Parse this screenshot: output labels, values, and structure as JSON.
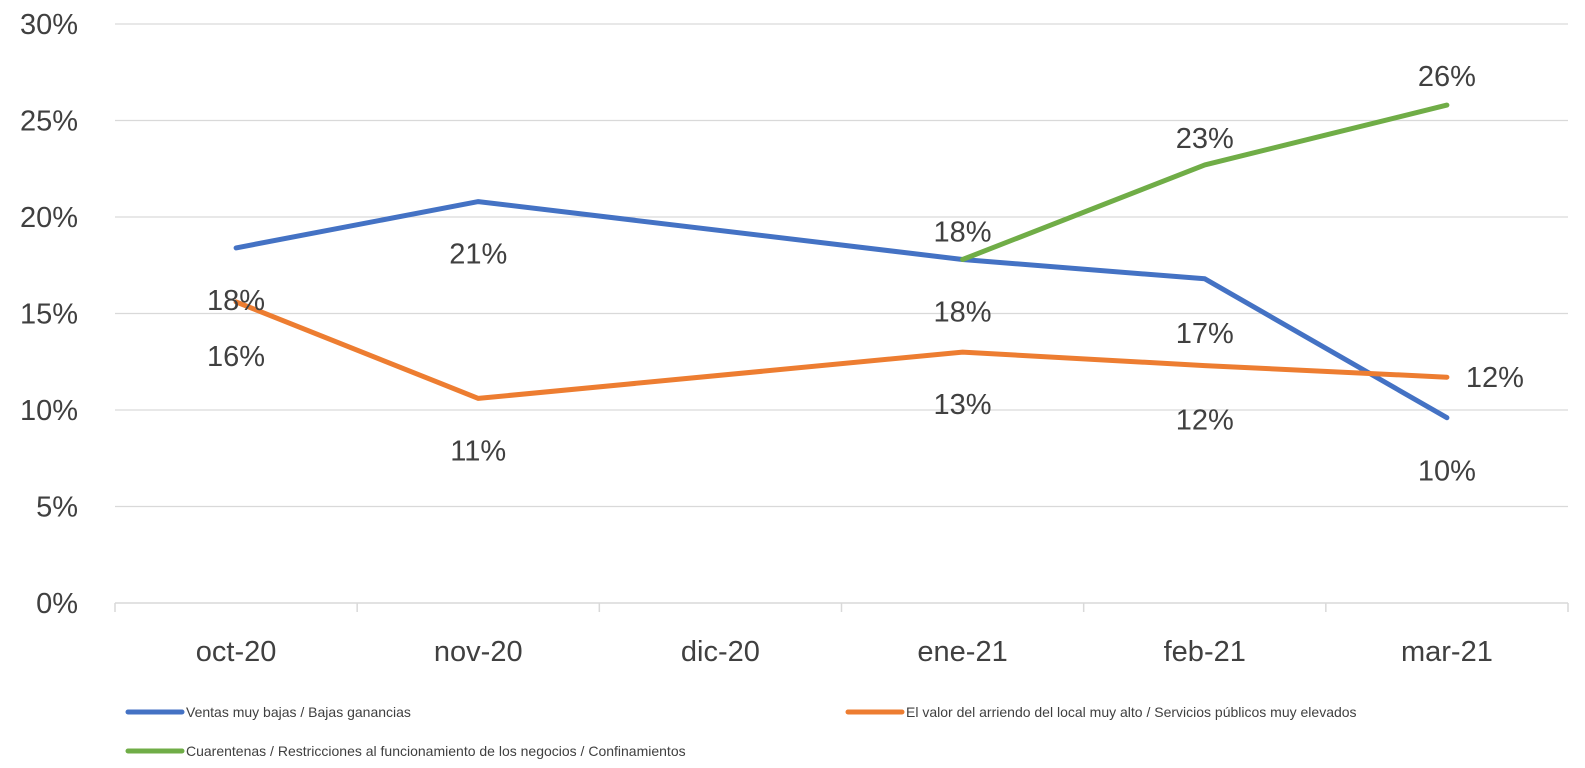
{
  "chart_data": {
    "type": "line",
    "categories": [
      "oct-20",
      "nov-20",
      "dic-20",
      "ene-21",
      "feb-21",
      "mar-21"
    ],
    "ylim": [
      0,
      30
    ],
    "yticks": [
      "0%",
      "5%",
      "10%",
      "15%",
      "20%",
      "25%",
      "30%"
    ],
    "y_format": "percent",
    "grid": true,
    "legend_position": "bottom",
    "series": [
      {
        "name": "Ventas muy bajas / Bajas ganancias",
        "color": "#4472C4",
        "values": [
          18.4,
          20.8,
          null,
          17.8,
          16.8,
          9.6
        ],
        "labels": [
          "18%",
          "21%",
          null,
          "18%",
          "17%",
          "10%"
        ]
      },
      {
        "name": "El valor del arriendo del local muy alto / Servicios públicos muy elevados",
        "color": "#ED7D31",
        "values": [
          15.6,
          10.6,
          null,
          13.0,
          12.3,
          11.7
        ],
        "labels": [
          "16%",
          "11%",
          null,
          "13%",
          "12%",
          "12%"
        ]
      },
      {
        "name": "Cuarentenas / Restricciones al funcionamiento de los negocios / Confinamientos",
        "color": "#70AD47",
        "values": [
          null,
          null,
          null,
          17.8,
          22.7,
          25.8
        ],
        "labels": [
          null,
          null,
          null,
          "18%",
          "23%",
          "26%"
        ]
      }
    ]
  }
}
